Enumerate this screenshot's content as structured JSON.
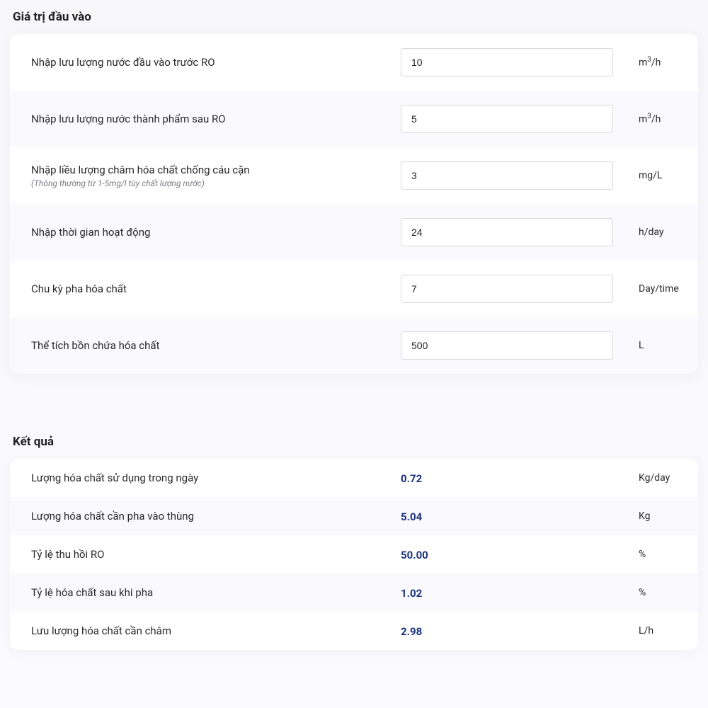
{
  "inputs_section": {
    "title": "Giá trị đầu vào",
    "rows": [
      {
        "label": "Nhập lưu lượng nước đầu vào trước RO",
        "sublabel": "",
        "value": "10",
        "unit_html": "m<sup>3</sup>/h"
      },
      {
        "label": "Nhập lưu lượng nước thành phẩm sau RO",
        "sublabel": "",
        "value": "5",
        "unit_html": "m<sup>3</sup>/h"
      },
      {
        "label": "Nhập liều lượng châm hóa chất chống cáu cặn",
        "sublabel": "(Thông thường từ 1-5mg/l tùy chất lượng nước)",
        "value": "3",
        "unit_html": "mg/L"
      },
      {
        "label": "Nhập thời gian hoạt động",
        "sublabel": "",
        "value": "24",
        "unit_html": "h/day"
      },
      {
        "label": "Chu kỳ pha hóa chất",
        "sublabel": "",
        "value": "7",
        "unit_html": "Day/time"
      },
      {
        "label": "Thể tích bồn chứa hóa chất",
        "sublabel": "",
        "value": "500",
        "unit_html": "L"
      }
    ]
  },
  "results_section": {
    "title": "Kết quả",
    "rows": [
      {
        "label": "Lượng hóa chất sử dụng trong ngày",
        "value": "0.72",
        "unit": "Kg/day"
      },
      {
        "label": "Lượng hóa chất cần pha vào thùng",
        "value": "5.04",
        "unit": "Kg"
      },
      {
        "label": "Tỷ lệ thu hồi RO",
        "value": "50.00",
        "unit": "%"
      },
      {
        "label": "Tỷ lệ hóa chất sau khi pha",
        "value": "1.02",
        "unit": "%"
      },
      {
        "label": "Lưu lượng hóa chất cần châm",
        "value": "2.98",
        "unit": "L/h"
      }
    ]
  },
  "styling": {
    "card_bg": "#ffffff",
    "alt_row_bg": "#f9f9fe",
    "result_value_color": "#1c337f",
    "input_border": "#d8d8e0",
    "sublabel_color": "#7a7a8a"
  }
}
